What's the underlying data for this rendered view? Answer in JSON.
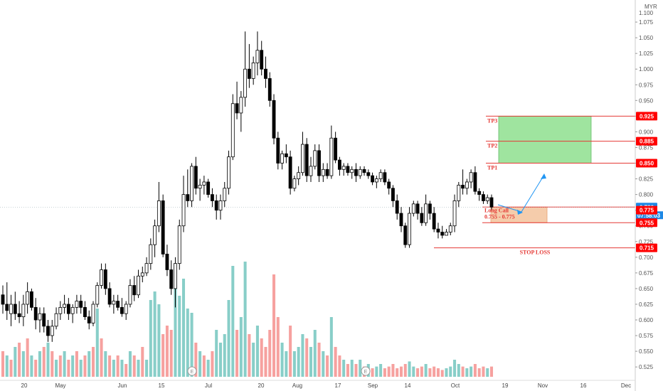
{
  "chart_data": {
    "type": "candlestick",
    "currency": "MYR",
    "ylim": [
      0.515,
      1.1
    ],
    "yticks": [
      1.1,
      1.075,
      1.05,
      1.025,
      1.0,
      0.975,
      0.95,
      0.925,
      0.9,
      0.875,
      0.85,
      0.825,
      0.8,
      0.775,
      0.75,
      0.725,
      0.7,
      0.675,
      0.65,
      0.625,
      0.6,
      0.575,
      0.55,
      0.525
    ],
    "xticks": [
      "20",
      "May",
      "Jun",
      "15",
      "Jul",
      "20",
      "Aug",
      "17",
      "Sep",
      "14",
      "Oct",
      "19",
      "Nov",
      "16",
      "Dec"
    ],
    "candles": [
      [
        0.64,
        0.655,
        0.61,
        0.625
      ],
      [
        0.625,
        0.66,
        0.6,
        0.615
      ],
      [
        0.61,
        0.64,
        0.59,
        0.625
      ],
      [
        0.625,
        0.645,
        0.6,
        0.61
      ],
      [
        0.61,
        0.63,
        0.595,
        0.605
      ],
      [
        0.605,
        0.64,
        0.59,
        0.625
      ],
      [
        0.625,
        0.66,
        0.61,
        0.645
      ],
      [
        0.645,
        0.65,
        0.615,
        0.62
      ],
      [
        0.62,
        0.635,
        0.585,
        0.6
      ],
      [
        0.6,
        0.62,
        0.58,
        0.61
      ],
      [
        0.61,
        0.62,
        0.58,
        0.59
      ],
      [
        0.59,
        0.6,
        0.565,
        0.575
      ],
      [
        0.575,
        0.6,
        0.565,
        0.59
      ],
      [
        0.59,
        0.62,
        0.585,
        0.61
      ],
      [
        0.61,
        0.63,
        0.6,
        0.62
      ],
      [
        0.62,
        0.64,
        0.61,
        0.625
      ],
      [
        0.625,
        0.635,
        0.6,
        0.61
      ],
      [
        0.61,
        0.625,
        0.595,
        0.62
      ],
      [
        0.62,
        0.64,
        0.61,
        0.63
      ],
      [
        0.63,
        0.64,
        0.61,
        0.62
      ],
      [
        0.62,
        0.63,
        0.6,
        0.605
      ],
      [
        0.605,
        0.615,
        0.585,
        0.595
      ],
      [
        0.595,
        0.63,
        0.59,
        0.625
      ],
      [
        0.625,
        0.66,
        0.62,
        0.655
      ],
      [
        0.655,
        0.69,
        0.65,
        0.68
      ],
      [
        0.68,
        0.69,
        0.64,
        0.65
      ],
      [
        0.65,
        0.66,
        0.62,
        0.625
      ],
      [
        0.625,
        0.64,
        0.61,
        0.63
      ],
      [
        0.63,
        0.64,
        0.615,
        0.62
      ],
      [
        0.62,
        0.635,
        0.605,
        0.61
      ],
      [
        0.61,
        0.63,
        0.6,
        0.625
      ],
      [
        0.625,
        0.665,
        0.62,
        0.655
      ],
      [
        0.655,
        0.67,
        0.63,
        0.64
      ],
      [
        0.64,
        0.68,
        0.635,
        0.67
      ],
      [
        0.67,
        0.685,
        0.66,
        0.675
      ],
      [
        0.675,
        0.7,
        0.67,
        0.69
      ],
      [
        0.69,
        0.73,
        0.68,
        0.72
      ],
      [
        0.72,
        0.76,
        0.7,
        0.75
      ],
      [
        0.75,
        0.82,
        0.74,
        0.79
      ],
      [
        0.79,
        0.8,
        0.7,
        0.705
      ],
      [
        0.705,
        0.72,
        0.67,
        0.68
      ],
      [
        0.68,
        0.695,
        0.64,
        0.65
      ],
      [
        0.65,
        0.7,
        0.62,
        0.69
      ],
      [
        0.69,
        0.76,
        0.68,
        0.75
      ],
      [
        0.75,
        0.83,
        0.74,
        0.8
      ],
      [
        0.8,
        0.84,
        0.78,
        0.79
      ],
      [
        0.79,
        0.85,
        0.78,
        0.845
      ],
      [
        0.845,
        0.86,
        0.8,
        0.81
      ],
      [
        0.81,
        0.825,
        0.79,
        0.815
      ],
      [
        0.815,
        0.83,
        0.8,
        0.82
      ],
      [
        0.82,
        0.825,
        0.795,
        0.8
      ],
      [
        0.8,
        0.81,
        0.78,
        0.79
      ],
      [
        0.79,
        0.8,
        0.76,
        0.775
      ],
      [
        0.775,
        0.8,
        0.76,
        0.79
      ],
      [
        0.79,
        0.82,
        0.78,
        0.81
      ],
      [
        0.81,
        0.87,
        0.8,
        0.86
      ],
      [
        0.86,
        0.96,
        0.855,
        0.945
      ],
      [
        0.945,
        0.98,
        0.92,
        0.93
      ],
      [
        0.93,
        0.965,
        0.9,
        0.955
      ],
      [
        0.955,
        1.06,
        0.94,
        1.0
      ],
      [
        1.0,
        1.04,
        0.97,
        0.985
      ],
      [
        0.985,
        1.02,
        0.975,
        1.01
      ],
      [
        1.01,
        1.06,
        0.99,
        1.03
      ],
      [
        1.03,
        1.045,
        0.99,
        1.0
      ],
      [
        1.0,
        1.02,
        0.97,
        0.985
      ],
      [
        0.985,
        0.995,
        0.94,
        0.95
      ],
      [
        0.95,
        0.96,
        0.88,
        0.89
      ],
      [
        0.89,
        0.9,
        0.84,
        0.85
      ],
      [
        0.85,
        0.87,
        0.84,
        0.865
      ],
      [
        0.865,
        0.88,
        0.85,
        0.86
      ],
      [
        0.86,
        0.87,
        0.8,
        0.81
      ],
      [
        0.81,
        0.83,
        0.805,
        0.825
      ],
      [
        0.825,
        0.845,
        0.815,
        0.835
      ],
      [
        0.835,
        0.9,
        0.83,
        0.88
      ],
      [
        0.88,
        0.89,
        0.82,
        0.83
      ],
      [
        0.83,
        0.86,
        0.82,
        0.845
      ],
      [
        0.845,
        0.88,
        0.84,
        0.87
      ],
      [
        0.87,
        0.88,
        0.82,
        0.83
      ],
      [
        0.83,
        0.85,
        0.82,
        0.84
      ],
      [
        0.84,
        0.85,
        0.825,
        0.83
      ],
      [
        0.83,
        0.91,
        0.825,
        0.89
      ],
      [
        0.89,
        0.9,
        0.85,
        0.855
      ],
      [
        0.855,
        0.86,
        0.83,
        0.84
      ],
      [
        0.84,
        0.85,
        0.83,
        0.845
      ],
      [
        0.845,
        0.85,
        0.83,
        0.835
      ],
      [
        0.835,
        0.845,
        0.825,
        0.84
      ],
      [
        0.84,
        0.85,
        0.82,
        0.83
      ],
      [
        0.83,
        0.845,
        0.825,
        0.84
      ],
      [
        0.84,
        0.845,
        0.83,
        0.835
      ],
      [
        0.835,
        0.84,
        0.825,
        0.83
      ],
      [
        0.83,
        0.835,
        0.815,
        0.82
      ],
      [
        0.82,
        0.83,
        0.81,
        0.825
      ],
      [
        0.825,
        0.84,
        0.82,
        0.835
      ],
      [
        0.835,
        0.84,
        0.815,
        0.82
      ],
      [
        0.82,
        0.825,
        0.8,
        0.81
      ],
      [
        0.81,
        0.815,
        0.78,
        0.79
      ],
      [
        0.79,
        0.8,
        0.76,
        0.77
      ],
      [
        0.77,
        0.78,
        0.74,
        0.75
      ],
      [
        0.75,
        0.755,
        0.715,
        0.72
      ],
      [
        0.72,
        0.78,
        0.715,
        0.77
      ],
      [
        0.77,
        0.79,
        0.765,
        0.785
      ],
      [
        0.785,
        0.79,
        0.76,
        0.77
      ],
      [
        0.77,
        0.78,
        0.75,
        0.755
      ],
      [
        0.755,
        0.8,
        0.75,
        0.785
      ],
      [
        0.785,
        0.79,
        0.76,
        0.77
      ],
      [
        0.77,
        0.78,
        0.74,
        0.745
      ],
      [
        0.745,
        0.755,
        0.73,
        0.74
      ],
      [
        0.74,
        0.75,
        0.73,
        0.735
      ],
      [
        0.735,
        0.745,
        0.735,
        0.74
      ],
      [
        0.74,
        0.755,
        0.735,
        0.75
      ],
      [
        0.75,
        0.8,
        0.74,
        0.79
      ],
      [
        0.79,
        0.82,
        0.78,
        0.815
      ],
      [
        0.815,
        0.84,
        0.8,
        0.81
      ],
      [
        0.81,
        0.825,
        0.8,
        0.82
      ],
      [
        0.82,
        0.84,
        0.81,
        0.835
      ],
      [
        0.835,
        0.845,
        0.8,
        0.805
      ],
      [
        0.805,
        0.81,
        0.79,
        0.8
      ],
      [
        0.8,
        0.805,
        0.785,
        0.79
      ],
      [
        0.79,
        0.8,
        0.785,
        0.795
      ],
      [
        0.795,
        0.8,
        0.775,
        0.78
      ]
    ],
    "volumes": [
      [
        0.3,
        "d"
      ],
      [
        0.25,
        "u"
      ],
      [
        0.2,
        "d"
      ],
      [
        0.35,
        "u"
      ],
      [
        0.4,
        "d"
      ],
      [
        0.3,
        "u"
      ],
      [
        0.45,
        "d"
      ],
      [
        0.25,
        "u"
      ],
      [
        0.2,
        "d"
      ],
      [
        0.3,
        "u"
      ],
      [
        0.35,
        "d"
      ],
      [
        0.4,
        "u"
      ],
      [
        0.3,
        "d"
      ],
      [
        0.2,
        "u"
      ],
      [
        0.25,
        "d"
      ],
      [
        0.3,
        "u"
      ],
      [
        0.2,
        "d"
      ],
      [
        0.25,
        "u"
      ],
      [
        0.3,
        "d"
      ],
      [
        0.2,
        "u"
      ],
      [
        0.25,
        "d"
      ],
      [
        0.3,
        "u"
      ],
      [
        0.35,
        "d"
      ],
      [
        0.8,
        "u"
      ],
      [
        0.45,
        "d"
      ],
      [
        0.3,
        "u"
      ],
      [
        0.25,
        "d"
      ],
      [
        0.2,
        "u"
      ],
      [
        0.25,
        "d"
      ],
      [
        0.2,
        "u"
      ],
      [
        0.15,
        "d"
      ],
      [
        0.3,
        "u"
      ],
      [
        0.25,
        "d"
      ],
      [
        0.2,
        "u"
      ],
      [
        0.35,
        "d"
      ],
      [
        0.2,
        "u"
      ],
      [
        0.9,
        "u"
      ],
      [
        1.0,
        "u"
      ],
      [
        0.85,
        "u"
      ],
      [
        0.5,
        "d"
      ],
      [
        0.6,
        "d"
      ],
      [
        0.55,
        "d"
      ],
      [
        1.05,
        "u"
      ],
      [
        0.95,
        "u"
      ],
      [
        1.15,
        "u"
      ],
      [
        0.8,
        "u"
      ],
      [
        0.75,
        "u"
      ],
      [
        0.4,
        "d"
      ],
      [
        0.3,
        "u"
      ],
      [
        0.25,
        "d"
      ],
      [
        0.2,
        "u"
      ],
      [
        0.3,
        "d"
      ],
      [
        0.55,
        "u"
      ],
      [
        0.4,
        "u"
      ],
      [
        0.5,
        "u"
      ],
      [
        0.9,
        "u"
      ],
      [
        1.3,
        "u"
      ],
      [
        0.55,
        "d"
      ],
      [
        0.7,
        "u"
      ],
      [
        1.35,
        "u"
      ],
      [
        0.5,
        "d"
      ],
      [
        0.4,
        "u"
      ],
      [
        0.6,
        "u"
      ],
      [
        0.45,
        "d"
      ],
      [
        0.35,
        "d"
      ],
      [
        0.55,
        "d"
      ],
      [
        1.2,
        "d"
      ],
      [
        0.7,
        "d"
      ],
      [
        0.4,
        "u"
      ],
      [
        0.3,
        "u"
      ],
      [
        0.6,
        "d"
      ],
      [
        0.3,
        "u"
      ],
      [
        0.35,
        "u"
      ],
      [
        0.5,
        "u"
      ],
      [
        0.45,
        "d"
      ],
      [
        0.35,
        "u"
      ],
      [
        0.55,
        "u"
      ],
      [
        0.4,
        "d"
      ],
      [
        0.3,
        "u"
      ],
      [
        0.25,
        "d"
      ],
      [
        0.7,
        "u"
      ],
      [
        0.35,
        "d"
      ],
      [
        0.25,
        "d"
      ],
      [
        0.2,
        "u"
      ],
      [
        0.15,
        "d"
      ],
      [
        0.2,
        "u"
      ],
      [
        0.15,
        "d"
      ],
      [
        0.2,
        "u"
      ],
      [
        0.12,
        "d"
      ],
      [
        0.15,
        "u"
      ],
      [
        0.1,
        "d"
      ],
      [
        0.12,
        "u"
      ],
      [
        0.15,
        "u"
      ],
      [
        0.1,
        "d"
      ],
      [
        0.12,
        "d"
      ],
      [
        0.15,
        "d"
      ],
      [
        0.1,
        "d"
      ],
      [
        0.12,
        "d"
      ],
      [
        0.15,
        "d"
      ],
      [
        0.18,
        "u"
      ],
      [
        0.12,
        "u"
      ],
      [
        0.1,
        "d"
      ],
      [
        0.12,
        "d"
      ],
      [
        0.15,
        "u"
      ],
      [
        0.1,
        "d"
      ],
      [
        0.12,
        "d"
      ],
      [
        0.1,
        "d"
      ],
      [
        0.08,
        "d"
      ],
      [
        0.1,
        "u"
      ],
      [
        0.12,
        "u"
      ],
      [
        0.2,
        "u"
      ],
      [
        0.15,
        "u"
      ],
      [
        0.12,
        "d"
      ],
      [
        0.1,
        "u"
      ],
      [
        0.12,
        "u"
      ],
      [
        0.15,
        "d"
      ],
      [
        0.1,
        "d"
      ],
      [
        0.12,
        "d"
      ],
      [
        0.1,
        "u"
      ],
      [
        0.12,
        "d"
      ]
    ],
    "levels": {
      "tp3": {
        "label": "TP3",
        "price": 0.925,
        "tag": "0.925"
      },
      "tp2": {
        "label": "TP2",
        "price": 0.885,
        "tag": "0.885"
      },
      "tp1": {
        "label": "TP1",
        "price": 0.85,
        "tag": "0.850"
      },
      "entry_top": {
        "price": 0.78
      },
      "entry_bottom": {
        "price": 0.755,
        "tag": "0.755"
      },
      "entry_mid": {
        "price": 0.775,
        "tag": "0.775"
      },
      "stop": {
        "label": "STOP LOSS",
        "price": 0.715,
        "tag": "0.715"
      }
    },
    "last_price": {
      "price": 0.78,
      "tag": "0.780",
      "countdown": "07:58:03"
    },
    "long_call": {
      "line1": "Long Call",
      "line2": "0.755 - 0.775"
    },
    "colors": {
      "up": "#26a69a",
      "down": "#ef5350",
      "candle_up": "#ffffff",
      "candle_down": "#000000",
      "level": "#e53935",
      "tag": "#ff0000",
      "zone_green": "#8fe08f",
      "zone_orange": "#f4c7a2",
      "arrow": "#2196f3"
    },
    "earnings_markers": [
      "E",
      "E"
    ]
  }
}
